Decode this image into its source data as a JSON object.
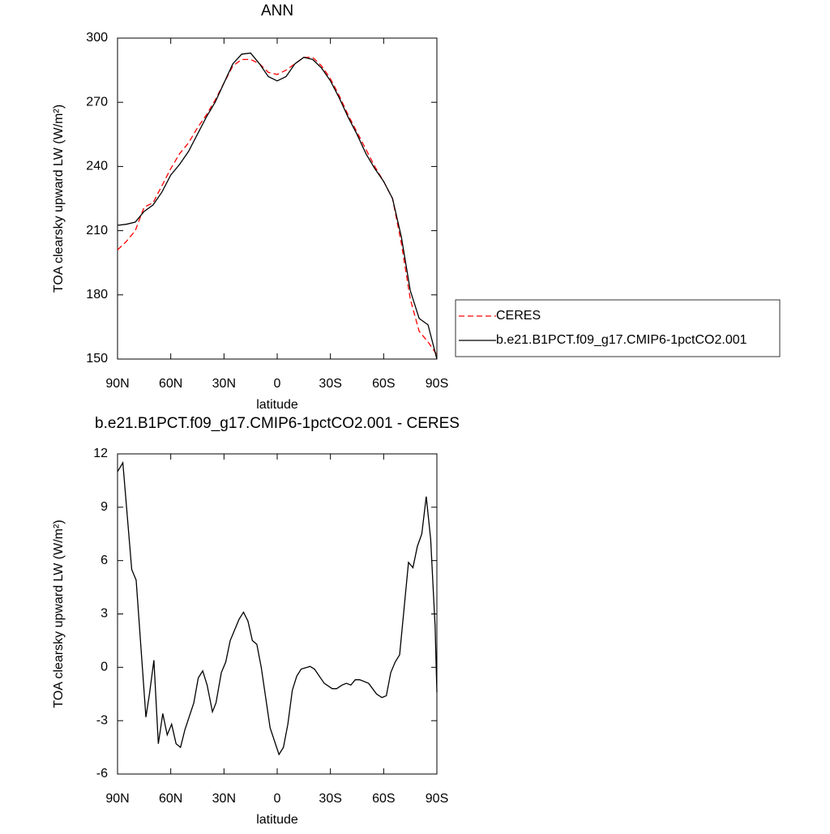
{
  "chart_data": [
    {
      "type": "line",
      "title": "ANN",
      "xlabel": "latitude",
      "ylabel": "TOA clearsky upward LW (W/m²)",
      "xlim": [
        90,
        -90
      ],
      "xticks": [
        {
          "value": 90,
          "label": "90N"
        },
        {
          "value": 60,
          "label": "60N"
        },
        {
          "value": 30,
          "label": "30N"
        },
        0,
        {
          "value": -30,
          "label": "30S"
        },
        {
          "value": -60,
          "label": "60S"
        },
        {
          "value": -90,
          "label": "90S"
        }
      ],
      "ylim": [
        150,
        300
      ],
      "yticks": [
        150,
        180,
        210,
        240,
        270,
        300
      ],
      "x": [
        90,
        85,
        80,
        75,
        70,
        65,
        60,
        55,
        50,
        45,
        40,
        35,
        30,
        25,
        20,
        15,
        10,
        5,
        0,
        -5,
        -10,
        -15,
        -20,
        -25,
        -30,
        -35,
        -40,
        -45,
        -50,
        -55,
        -60,
        -65,
        -70,
        -75,
        -80,
        -85,
        -90
      ],
      "legend": "right",
      "series": [
        {
          "name": "CERES",
          "color": "#ff0000",
          "dashed": true,
          "values": [
            201,
            205,
            210,
            221,
            223,
            231,
            239,
            246,
            251,
            258,
            264,
            271,
            279,
            287,
            290,
            290,
            288,
            284,
            283,
            285,
            288,
            291,
            291,
            287,
            281,
            273,
            264,
            256,
            248,
            240,
            233,
            225,
            204,
            178,
            163,
            158,
            152
          ]
        },
        {
          "name": "b.e21.B1PCT.f09_g17.CMIP6-1pctCO2.001",
          "color": "#000000",
          "dashed": false,
          "values": [
            212.5,
            213,
            214,
            219,
            222,
            228,
            236,
            241,
            247,
            255,
            263,
            270,
            279,
            288,
            292.5,
            293,
            288,
            282,
            280,
            282,
            288,
            291,
            290,
            286,
            280,
            272,
            263,
            255,
            246,
            239,
            233,
            225,
            207,
            182,
            169,
            166,
            150
          ]
        }
      ]
    },
    {
      "type": "line",
      "title": "b.e21.B1PCT.f09_g17.CMIP6-1pctCO2.001 - CERES",
      "xlabel": "latitude",
      "ylabel": "TOA clearsky upward LW (W/m²)",
      "xlim": [
        90,
        -90
      ],
      "xticks": [
        {
          "value": 90,
          "label": "90N"
        },
        {
          "value": 60,
          "label": "60N"
        },
        {
          "value": 30,
          "label": "30N"
        },
        0,
        {
          "value": -30,
          "label": "30S"
        },
        {
          "value": -60,
          "label": "60S"
        },
        {
          "value": -90,
          "label": "90S"
        }
      ],
      "ylim": [
        -6,
        12
      ],
      "yticks": [
        -6,
        -3,
        0,
        3,
        6,
        9,
        12
      ],
      "x": [
        90,
        87,
        82,
        79.5,
        74,
        72,
        69.5,
        67,
        64.5,
        62,
        59.5,
        57,
        54.5,
        52,
        47,
        44.5,
        42,
        39.5,
        36.5,
        34.5,
        31.5,
        29,
        26.5,
        21.5,
        19,
        16.5,
        14,
        11.5,
        9,
        4,
        -1,
        -3.5,
        -6,
        -8.5,
        -11,
        -13.5,
        -18.5,
        -21,
        -26.5,
        -31,
        -33.5,
        -36.5,
        -39,
        -41.5,
        -44,
        -46.5,
        -51.5,
        -56,
        -59,
        -61.5,
        -64,
        -66.5,
        -69,
        -71.5,
        -74,
        -76.5,
        -79,
        -81.5,
        -84,
        -86.5,
        -89,
        -90
      ],
      "color": "#000000",
      "values": [
        11,
        11.5,
        5.5,
        4.9,
        -2.8,
        -1.5,
        0.4,
        -4.3,
        -2.6,
        -3.8,
        -3.2,
        -4.3,
        -4.5,
        -3.5,
        -2.0,
        -0.6,
        -0.2,
        -1.0,
        -2.5,
        -2.0,
        -0.3,
        0.3,
        1.5,
        2.7,
        3.1,
        2.6,
        1.5,
        1.3,
        0.0,
        -3.4,
        -4.9,
        -4.5,
        -3.2,
        -1.3,
        -0.5,
        -0.1,
        0.05,
        -0.1,
        -0.9,
        -1.2,
        -1.2,
        -1.0,
        -0.9,
        -1.0,
        -0.7,
        -0.7,
        -0.9,
        -1.5,
        -1.7,
        -1.6,
        -0.3,
        0.3,
        0.7,
        3.3,
        5.9,
        5.6,
        6.8,
        7.5,
        9.6,
        7.2,
        2.3,
        -1.4
      ]
    }
  ]
}
